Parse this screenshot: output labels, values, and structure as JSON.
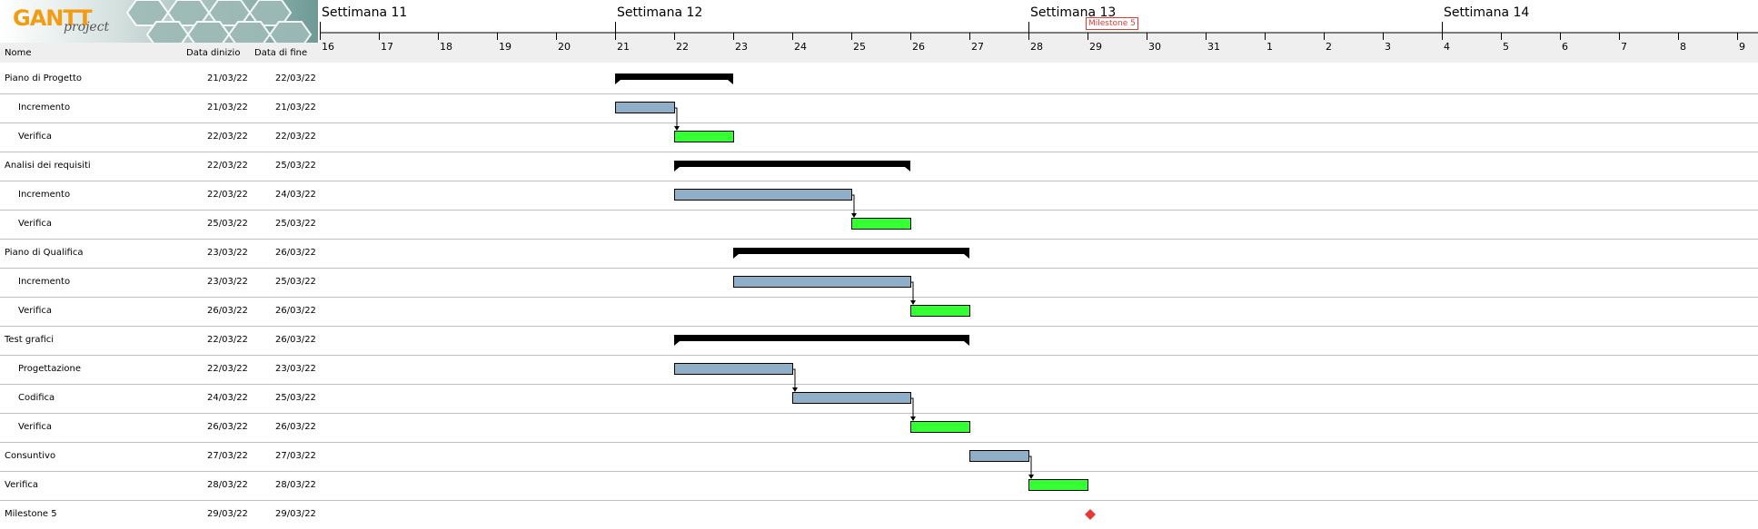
{
  "app": {
    "logo_text": "GANTT",
    "logo_subtext": "project"
  },
  "table": {
    "headers": {
      "name": "Nome",
      "start": "Data dinizio",
      "end": "Data di fine"
    }
  },
  "timeline": {
    "weeks": [
      {
        "label": "Settimana  11",
        "day_index": 0
      },
      {
        "label": "Settimana  12",
        "day_index": 5
      },
      {
        "label": "Settimana  13",
        "day_index": 12
      },
      {
        "label": "Settimana  14",
        "day_index": 19
      }
    ],
    "days": [
      "16",
      "17",
      "18",
      "19",
      "20",
      "21",
      "22",
      "23",
      "24",
      "25",
      "26",
      "27",
      "28",
      "29",
      "30",
      "31",
      "1",
      "2",
      "3",
      "4",
      "5",
      "6",
      "7",
      "8",
      "9"
    ],
    "milestone_tag": {
      "label": "Milestone 5",
      "day_index": 13
    }
  },
  "tasks": [
    {
      "name": "Piano di Progetto",
      "start": "21/03/22",
      "end": "22/03/22",
      "indent": false,
      "kind": "summary",
      "s": 5,
      "e": 7
    },
    {
      "name": "Incremento",
      "start": "21/03/22",
      "end": "21/03/22",
      "indent": true,
      "kind": "task",
      "s": 5,
      "e": 6
    },
    {
      "name": "Verifica",
      "start": "22/03/22",
      "end": "22/03/22",
      "indent": true,
      "kind": "verify",
      "s": 6,
      "e": 7
    },
    {
      "name": "Analisi dei requisiti",
      "start": "22/03/22",
      "end": "25/03/22",
      "indent": false,
      "kind": "summary",
      "s": 6,
      "e": 10
    },
    {
      "name": "Incremento",
      "start": "22/03/22",
      "end": "24/03/22",
      "indent": true,
      "kind": "task",
      "s": 6,
      "e": 9
    },
    {
      "name": "Verifica",
      "start": "25/03/22",
      "end": "25/03/22",
      "indent": true,
      "kind": "verify",
      "s": 9,
      "e": 10
    },
    {
      "name": "Piano di Qualifica",
      "start": "23/03/22",
      "end": "26/03/22",
      "indent": false,
      "kind": "summary",
      "s": 7,
      "e": 11
    },
    {
      "name": "Incremento",
      "start": "23/03/22",
      "end": "25/03/22",
      "indent": true,
      "kind": "task",
      "s": 7,
      "e": 10
    },
    {
      "name": "Verifica",
      "start": "26/03/22",
      "end": "26/03/22",
      "indent": true,
      "kind": "verify",
      "s": 10,
      "e": 11
    },
    {
      "name": "Test grafici",
      "start": "22/03/22",
      "end": "26/03/22",
      "indent": false,
      "kind": "summary",
      "s": 6,
      "e": 11
    },
    {
      "name": "Progettazione",
      "start": "22/03/22",
      "end": "23/03/22",
      "indent": true,
      "kind": "task",
      "s": 6,
      "e": 8
    },
    {
      "name": "Codifica",
      "start": "24/03/22",
      "end": "25/03/22",
      "indent": true,
      "kind": "task",
      "s": 8,
      "e": 10
    },
    {
      "name": "Verifica",
      "start": "26/03/22",
      "end": "26/03/22",
      "indent": true,
      "kind": "verify",
      "s": 10,
      "e": 11
    },
    {
      "name": "Consuntivo",
      "start": "27/03/22",
      "end": "27/03/22",
      "indent": false,
      "kind": "task",
      "s": 11,
      "e": 12
    },
    {
      "name": "Verifica",
      "start": "28/03/22",
      "end": "28/03/22",
      "indent": false,
      "kind": "verify",
      "s": 12,
      "e": 13
    },
    {
      "name": "Milestone 5",
      "start": "29/03/22",
      "end": "29/03/22",
      "indent": false,
      "kind": "milestone",
      "s": 13,
      "e": 13
    }
  ],
  "dependencies": [
    [
      1,
      2
    ],
    [
      4,
      5
    ],
    [
      7,
      8
    ],
    [
      10,
      11
    ],
    [
      11,
      12
    ],
    [
      13,
      14
    ]
  ],
  "colors": {
    "task": "#8fafc8",
    "verify": "#33ff33",
    "summary": "#000000",
    "milestone": "#e53935",
    "row_line": "#c0c0c0",
    "header_bg": "#efefef"
  }
}
